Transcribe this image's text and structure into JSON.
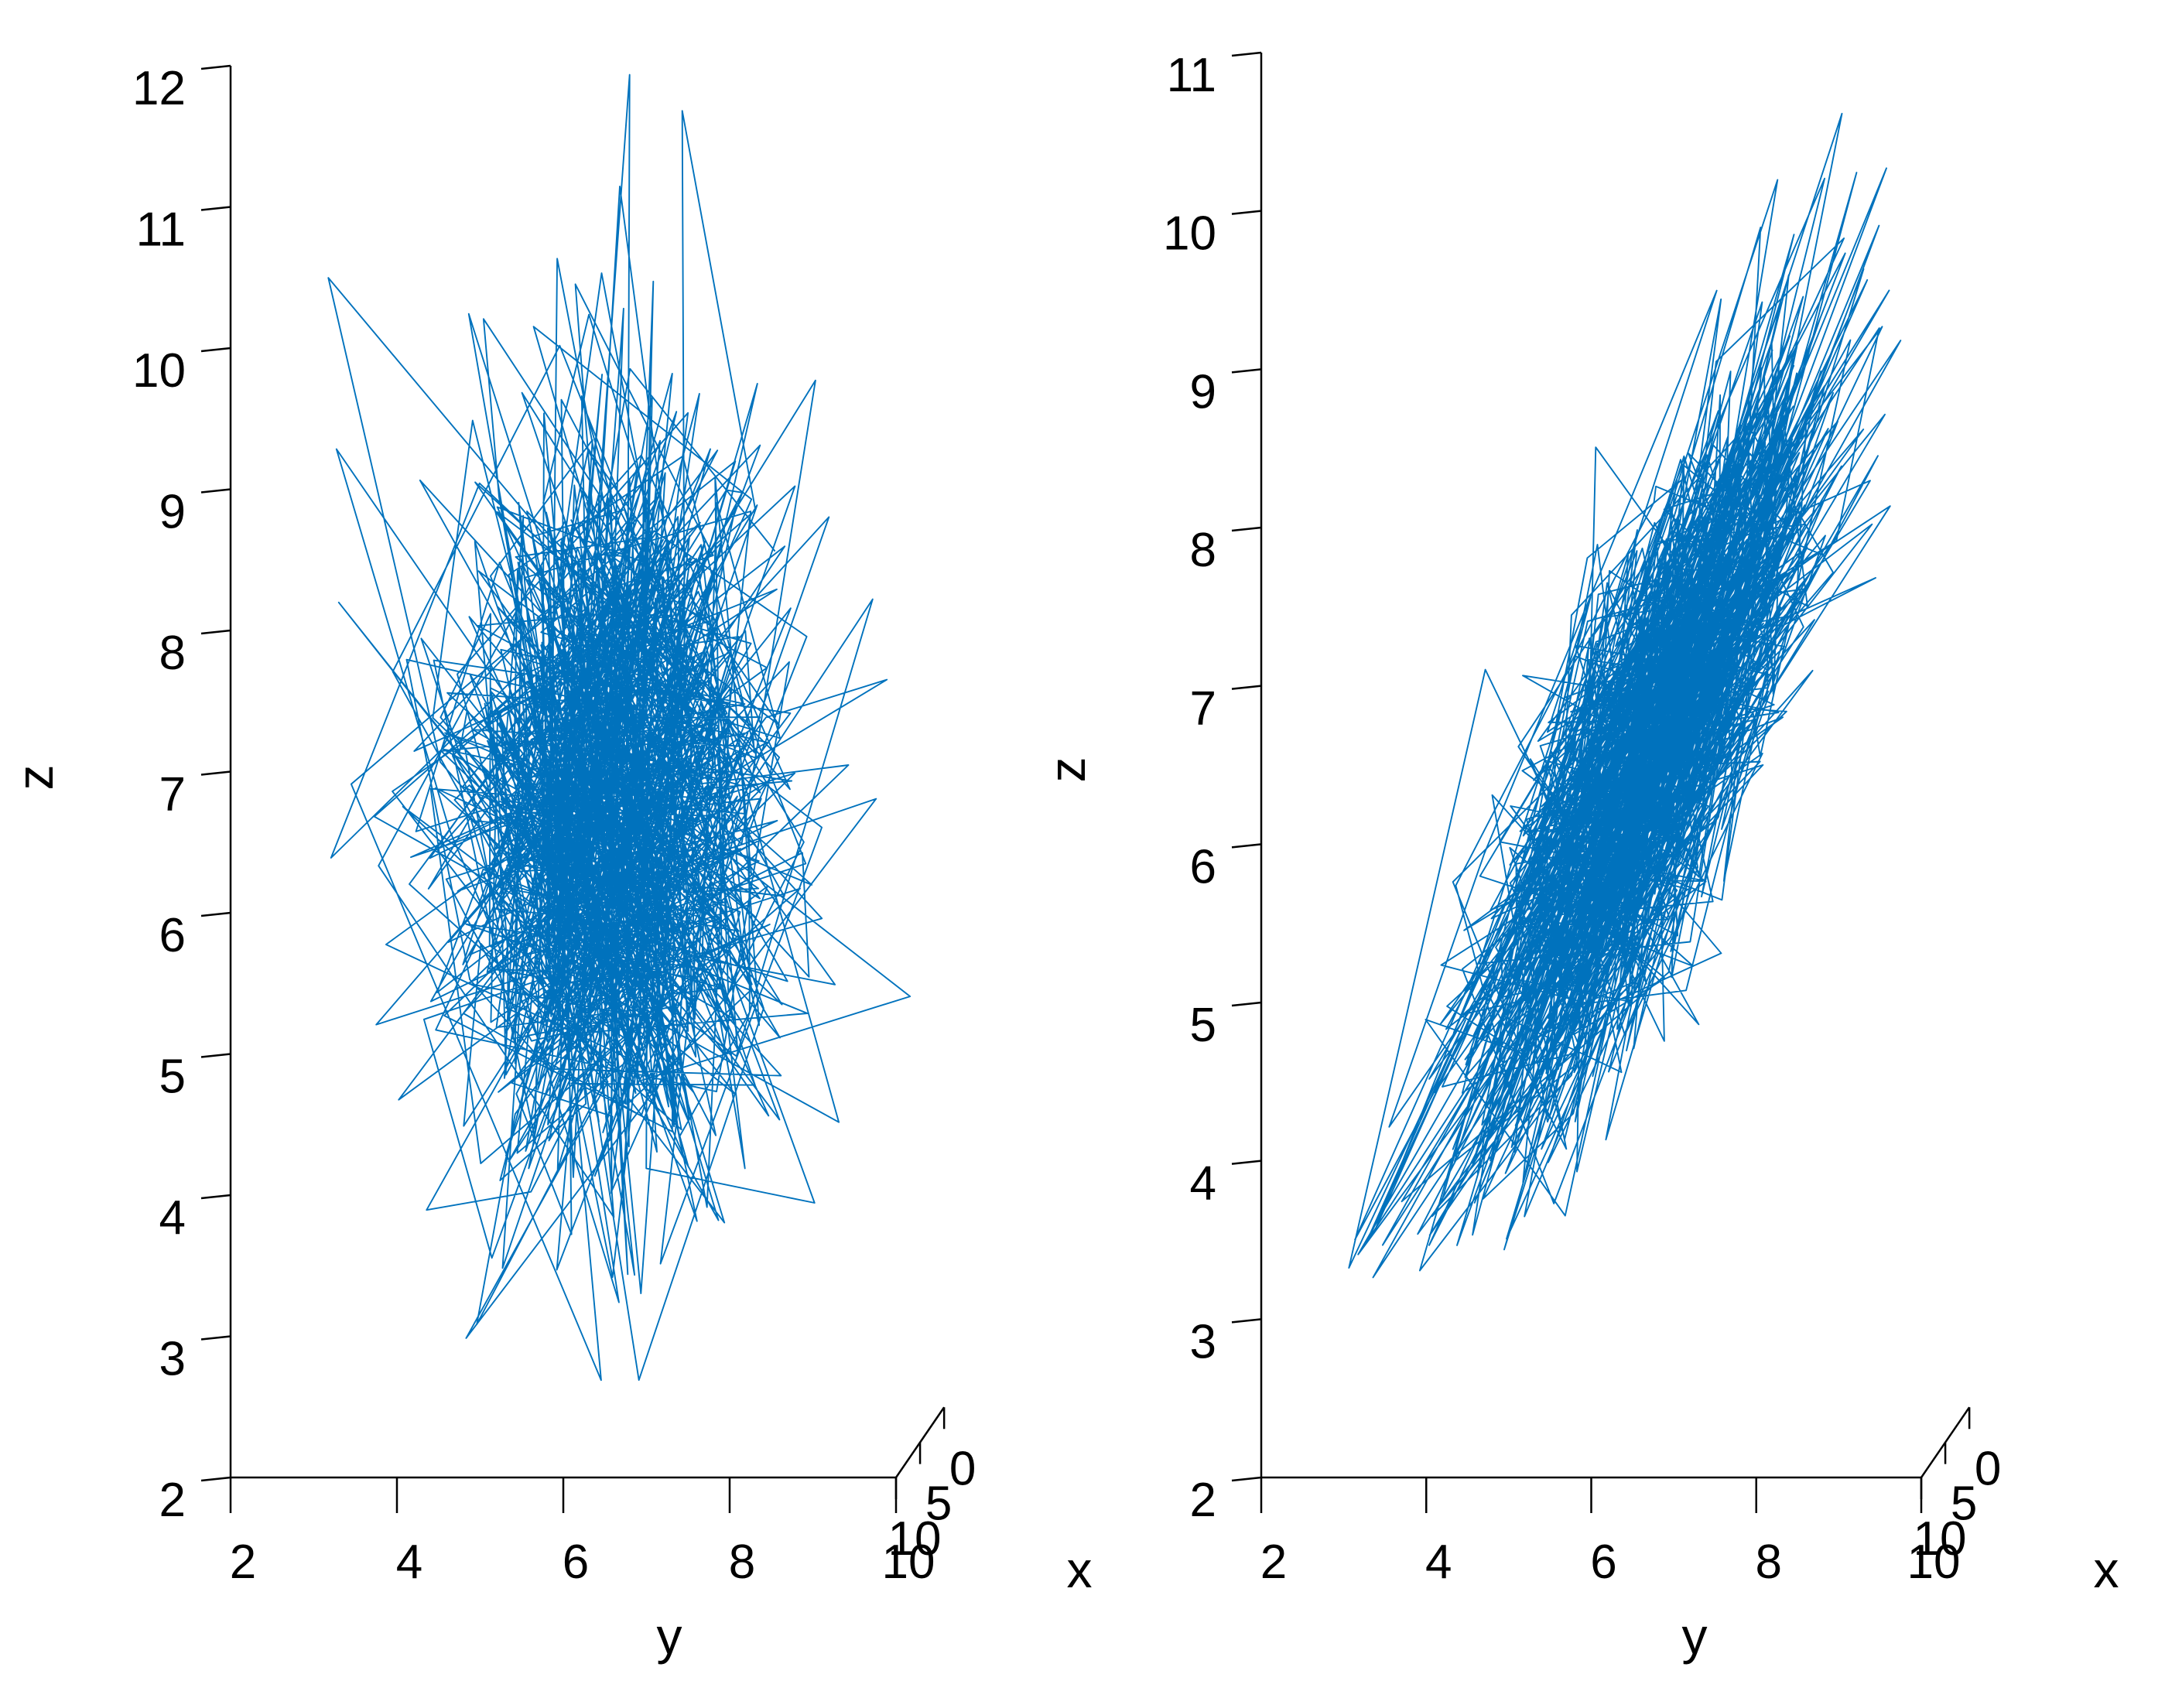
{
  "chart_data": [
    {
      "type": "line3d",
      "title": "",
      "xlabel": "x",
      "ylabel": "y",
      "zlabel": "z",
      "xlim": [
        0,
        10
      ],
      "ylim": [
        2,
        10
      ],
      "zlim": [
        2,
        12
      ],
      "x_ticks": [
        "0",
        "5",
        "10"
      ],
      "y_ticks": [
        "2",
        "4",
        "6",
        "8",
        "10"
      ],
      "z_ticks": [
        "2",
        "3",
        "4",
        "5",
        "6",
        "7",
        "8",
        "9",
        "10",
        "11",
        "12"
      ],
      "grid": false,
      "legend": "none",
      "series": [
        {
          "color": "#0072BD",
          "points_description": "random walk of ~1000 points, approx. isotropic around (x≈5, y≈6.3, z≈6.5)",
          "y_center": 6.3,
          "y_spread": 1.1,
          "y_range": [
            2.3,
            9.6
          ],
          "z_center": 6.5,
          "z_spread": 1.4,
          "z_range": [
            2.6,
            11.8
          ],
          "correlation": 0.0,
          "n_points": 1000
        }
      ]
    },
    {
      "type": "line3d",
      "title": "",
      "xlabel": "x",
      "ylabel": "y",
      "zlabel": "z",
      "xlim": [
        0,
        10
      ],
      "ylim": [
        2,
        10
      ],
      "zlim": [
        2,
        11
      ],
      "x_ticks": [
        "0",
        "5",
        "10"
      ],
      "y_ticks": [
        "2",
        "4",
        "6",
        "8",
        "10"
      ],
      "z_ticks": [
        "2",
        "3",
        "4",
        "5",
        "6",
        "7",
        "8",
        "9",
        "10",
        "11"
      ],
      "grid": false,
      "legend": "none",
      "series": [
        {
          "color": "#0072BD",
          "points_description": "random walk of ~1000 points, strongly correlated y–z, elongated diagonal cloud",
          "y_center": 6.3,
          "y_spread": 1.2,
          "y_range": [
            2.9,
            9.3
          ],
          "z_center": 6.3,
          "z_spread": 1.3,
          "z_range": [
            3.2,
            10.5
          ],
          "correlation": 0.8,
          "n_points": 1000
        }
      ]
    }
  ]
}
